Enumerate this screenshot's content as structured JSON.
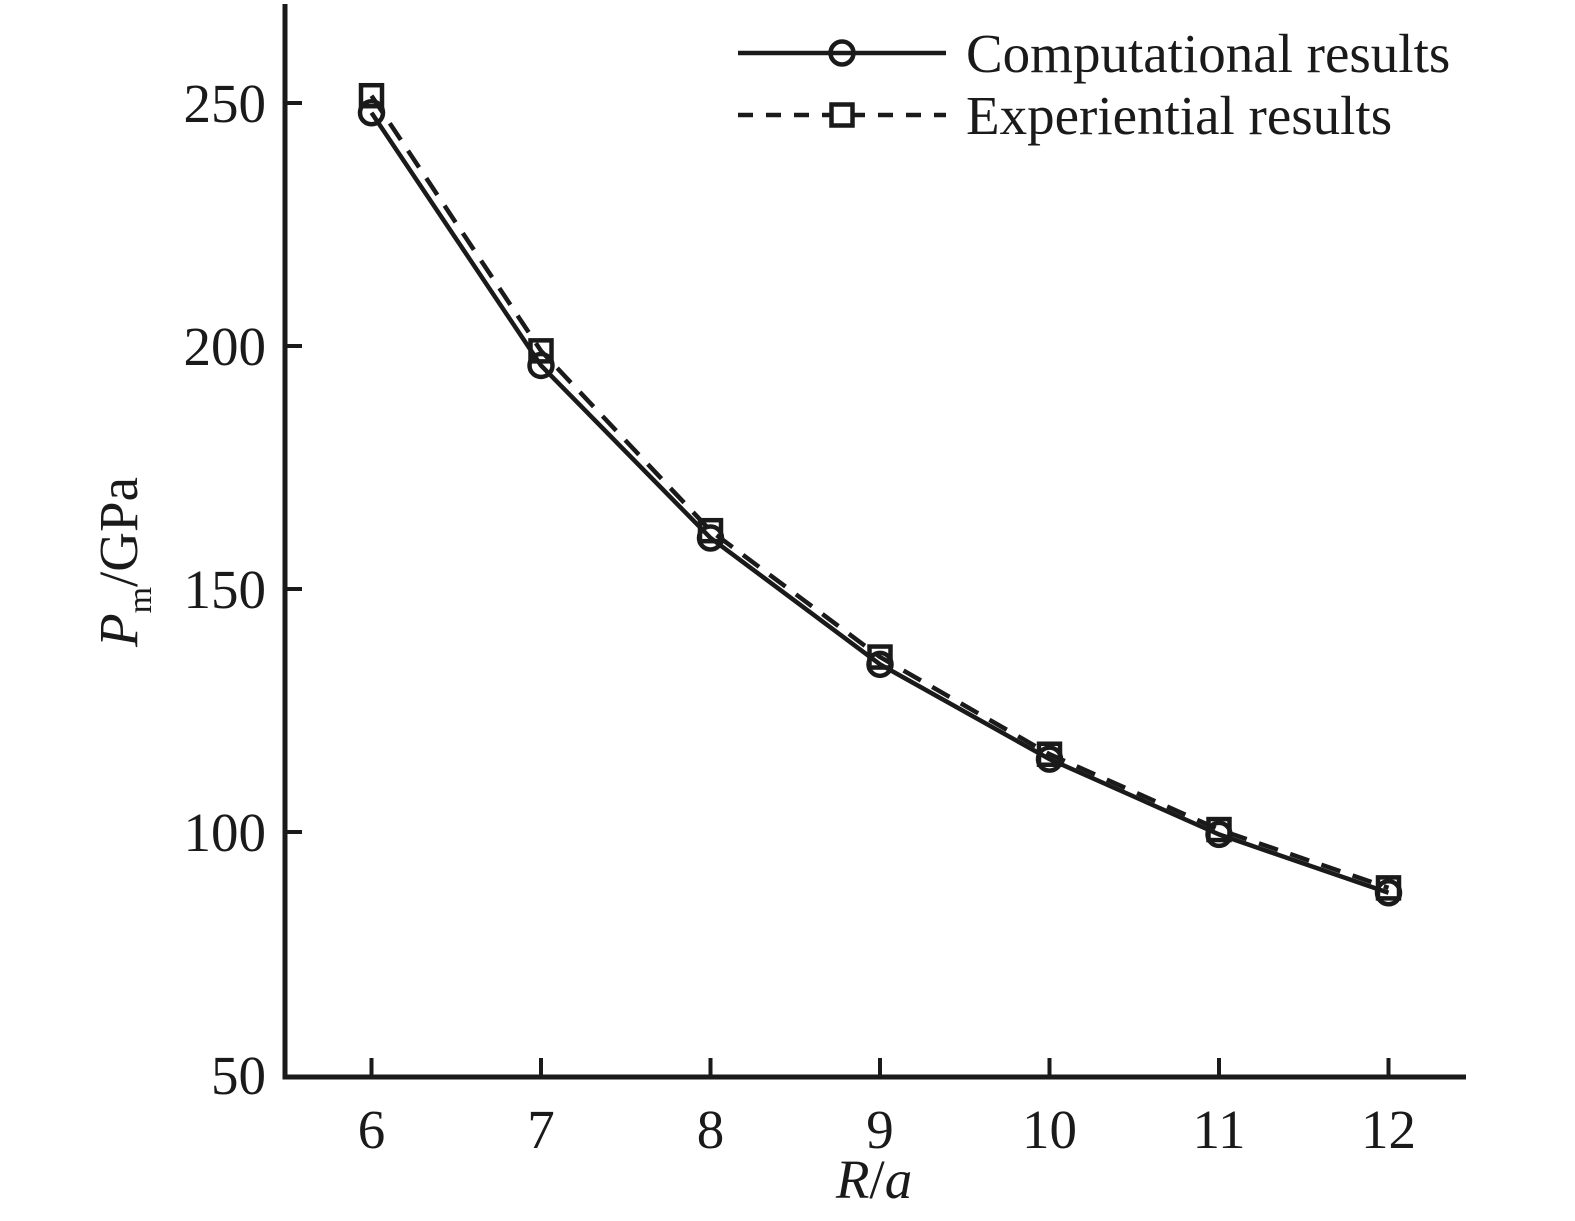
{
  "figure": {
    "background": "#ffffff",
    "ink_color": "#1a1a1a"
  },
  "legend": {
    "position": "upper-right",
    "items": [
      {
        "label": "Computational results",
        "marker": "circle",
        "linestyle": "solid"
      },
      {
        "label": "Experiential results",
        "marker": "square",
        "linestyle": "dashed"
      }
    ]
  },
  "axes": {
    "xlabel": "R/a",
    "ylabel": "Pm/GPa",
    "xlabel_rich": [
      {
        "t": "R",
        "style": "italic"
      },
      {
        "t": "/",
        "style": "normal"
      },
      {
        "t": "a",
        "style": "italic"
      }
    ],
    "ylabel_rich": [
      {
        "t": "P",
        "style": "italic"
      },
      {
        "t": "m",
        "style": "sub"
      },
      {
        "t": "/GPa",
        "style": "normal"
      }
    ],
    "xtick_labels": [
      "6",
      "7",
      "8",
      "9",
      "10",
      "11",
      "12"
    ],
    "ytick_labels": [
      "50",
      "100",
      "150",
      "200",
      "250"
    ]
  },
  "chart_data": {
    "type": "line",
    "x": [
      6,
      7,
      8,
      9,
      10,
      11,
      12
    ],
    "series": [
      {
        "name": "Computational results",
        "marker": "circle",
        "linestyle": "solid",
        "values": [
          248,
          196,
          160.5,
          134.5,
          115,
          99.5,
          87.5
        ]
      },
      {
        "name": "Experiential results",
        "marker": "square",
        "linestyle": "dashed",
        "values": [
          251.5,
          199,
          162,
          136,
          116,
          100.5,
          88.5
        ]
      }
    ],
    "title": "",
    "xlabel": "R/a",
    "ylabel": "Pm/GPa",
    "xlim": [
      5.5,
      12.45
    ],
    "ylim": [
      50,
      270
    ],
    "xticks": [
      6,
      7,
      8,
      9,
      10,
      11,
      12
    ],
    "yticks": [
      50,
      100,
      150,
      200,
      250
    ],
    "grid": false,
    "legend_position": "upper right"
  }
}
